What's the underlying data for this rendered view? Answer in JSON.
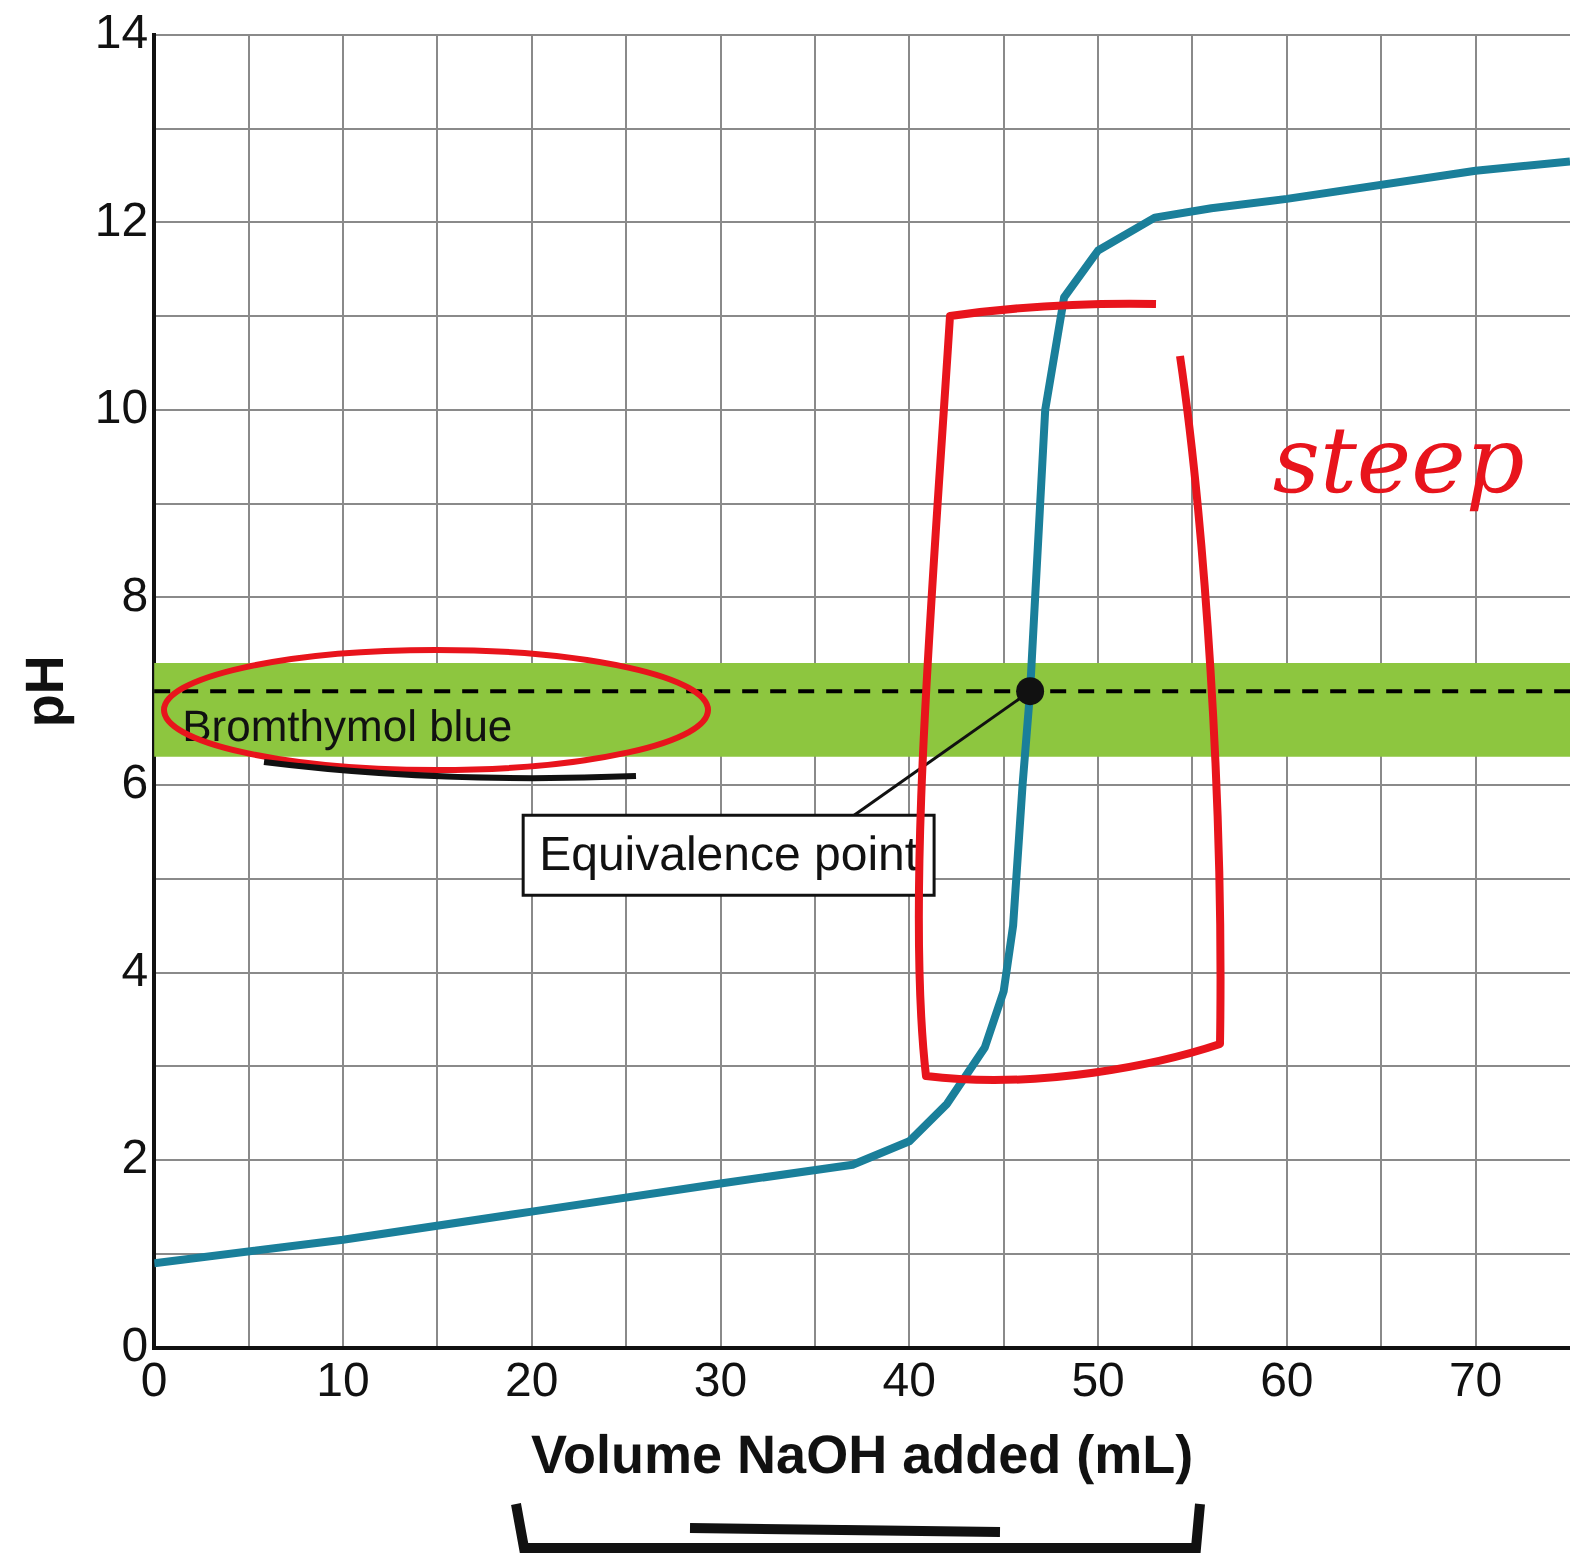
{
  "chart_data": {
    "type": "line",
    "xlabel": "Volume NaOH added (mL)",
    "ylabel": "pH",
    "xlim": [
      0,
      75
    ],
    "ylim": [
      0,
      14
    ],
    "xticks": [
      0,
      {
        "value": 5,
        "label": null
      },
      10,
      {
        "value": 15,
        "label": null
      },
      20,
      {
        "value": 25,
        "label": null
      },
      30,
      {
        "value": 35,
        "label": null
      },
      40,
      {
        "value": 45,
        "label": null
      },
      50,
      {
        "value": 55,
        "label": null
      },
      60,
      {
        "value": 65,
        "label": null
      },
      70
    ],
    "yticks": [
      0,
      {
        "value": 1,
        "label": null
      },
      2,
      {
        "value": 3,
        "label": null
      },
      4,
      {
        "value": 5,
        "label": null
      },
      6,
      {
        "value": 7,
        "label": null
      },
      8,
      {
        "value": 9,
        "label": null
      },
      10,
      {
        "value": 11,
        "label": null
      },
      12,
      {
        "value": 13,
        "label": null
      },
      14
    ],
    "grid": true,
    "legend": false,
    "marker": "none",
    "line_style": "solid",
    "series": [
      {
        "color": "#1a7f9a",
        "x": [
          0,
          10,
          20,
          30,
          37,
          40,
          42,
          44,
          45,
          45.5,
          46,
          46.4,
          46.8,
          47.2,
          47.7,
          48.2,
          50,
          53,
          56,
          60,
          70,
          75
        ],
        "values": [
          0.9,
          1.15,
          1.45,
          1.75,
          1.95,
          2.2,
          2.6,
          3.2,
          3.8,
          4.5,
          6.0,
          7.0,
          8.5,
          10.0,
          10.6,
          11.2,
          11.7,
          12.05,
          12.15,
          12.25,
          12.55,
          12.65
        ]
      }
    ],
    "bands": [
      {
        "axis": "y",
        "from": 6.3,
        "to": 7.3,
        "label": "Bromthymol blue",
        "color": "#8dc63f"
      }
    ],
    "ref_lines": [
      {
        "axis": "y",
        "value": 7,
        "color": "#000000",
        "line_style": "dashed"
      }
    ],
    "annotations": [
      {
        "text": "Equivalence point",
        "x": 46.4,
        "y": 7
      },
      "steep"
    ]
  }
}
